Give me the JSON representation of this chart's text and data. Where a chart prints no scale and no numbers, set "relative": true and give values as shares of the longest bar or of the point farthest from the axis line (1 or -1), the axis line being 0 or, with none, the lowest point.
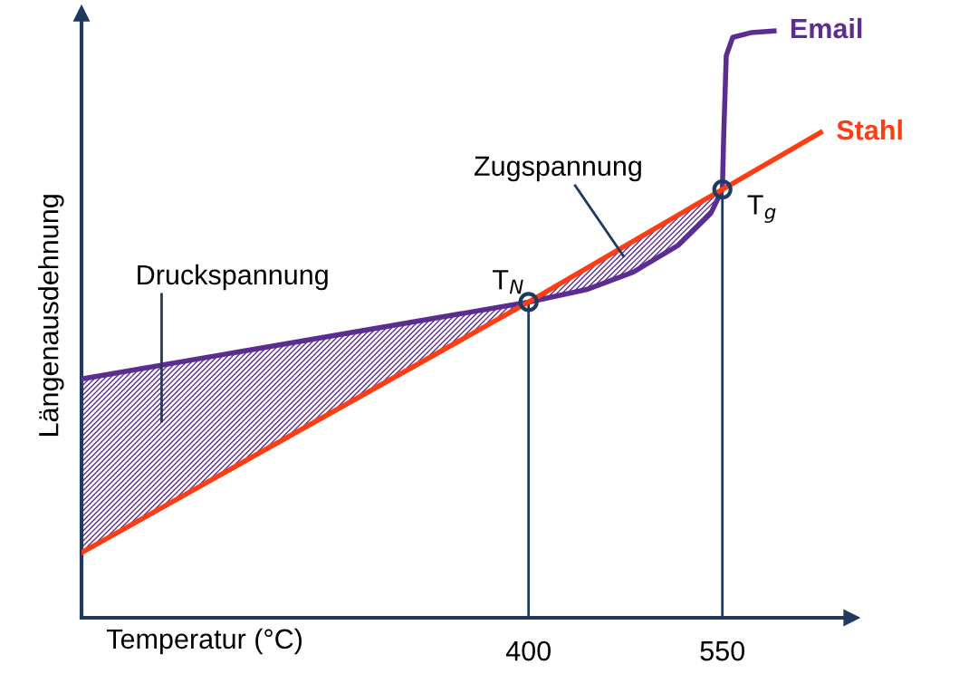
{
  "chart_data": {
    "type": "line",
    "relative": true,
    "xlabel": "Temperatur (°C)",
    "ylabel": "Längenausdehnung",
    "xlim": [
      54,
      650
    ],
    "xticks": [
      400,
      550
    ],
    "legend": false,
    "grid": false,
    "marker": "none",
    "line_style": "solid",
    "series": [
      {
        "name": "Email",
        "color": "#5c2d91",
        "x": [
          54,
          400,
          446,
          481,
          516,
          541,
          550,
          551,
          553,
          558,
          572,
          590
        ],
        "values": [
          0.407,
          0.538,
          0.56,
          0.589,
          0.635,
          0.689,
          0.73,
          0.82,
          0.958,
          0.989,
          0.997,
          1
        ]
      },
      {
        "name": "Stahl",
        "color": "#fe3d12",
        "x": [
          54,
          400,
          550,
          626
        ],
        "values": [
          0.111,
          0.538,
          0.73,
          0.827
        ]
      }
    ],
    "ref_lines": [
      {
        "axis": "x",
        "value": 400,
        "color": "#1f3a5f"
      },
      {
        "axis": "x",
        "value": 550,
        "color": "#1f3a5f"
      }
    ],
    "annotations": [
      "Druckspannung",
      "Zugspannung",
      {
        "text": "T$_{N}$",
        "x": 400,
        "y": 0.538
      },
      {
        "text": "T$_{g}$",
        "x": 550,
        "y": 0.73
      }
    ]
  }
}
